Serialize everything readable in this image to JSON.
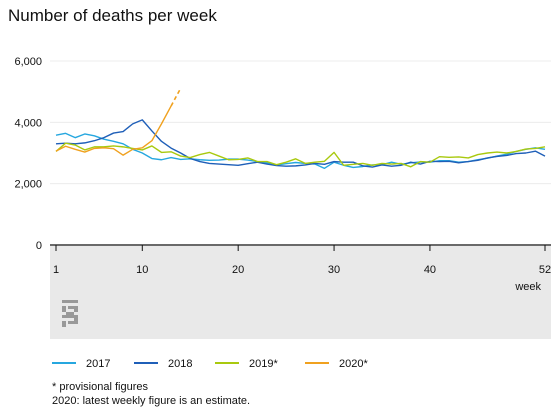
{
  "title": "Number of deaths per week",
  "colors": {
    "2017": "#26a7df",
    "2018": "#1f5fb8",
    "2019*": "#a9c90e",
    "2020*": "#f0a11f",
    "plot_bg": "#e9e9e9",
    "grid": "#ffffff",
    "axis": "#111111"
  },
  "icon": "cbs-logo-icon",
  "chart_data": {
    "type": "line",
    "title": "Number of deaths per week",
    "xlabel": "week",
    "ylabel": "",
    "xlim": [
      1,
      52
    ],
    "ylim": [
      0,
      6000
    ],
    "x_ticks": [
      1,
      10,
      20,
      30,
      40,
      52
    ],
    "y_ticks": [
      0,
      2000,
      4000,
      6000
    ],
    "y_tick_labels": [
      "0",
      "2,000",
      "4,000",
      "6,000"
    ],
    "grid": true,
    "legend": "bottom",
    "series": [
      {
        "name": "2017",
        "x": [
          1,
          2,
          3,
          4,
          5,
          6,
          7,
          8,
          9,
          10,
          11,
          12,
          13,
          14,
          15,
          16,
          17,
          18,
          19,
          20,
          21,
          22,
          23,
          24,
          25,
          26,
          27,
          28,
          29,
          30,
          31,
          32,
          33,
          34,
          35,
          36,
          37,
          38,
          39,
          40,
          41,
          42,
          43,
          44,
          45,
          46,
          47,
          48,
          49,
          50,
          51,
          52
        ],
        "values": [
          3580,
          3640,
          3500,
          3620,
          3560,
          3450,
          3380,
          3300,
          3120,
          3000,
          2820,
          2780,
          2850,
          2790,
          2810,
          2780,
          2760,
          2770,
          2800,
          2800,
          2770,
          2720,
          2680,
          2610,
          2650,
          2690,
          2660,
          2640,
          2500,
          2700,
          2600,
          2530,
          2560,
          2610,
          2620,
          2700,
          2630,
          2680,
          2710,
          2700,
          2750,
          2750,
          2700,
          2720,
          2780,
          2830,
          2900,
          2960,
          3050,
          3120,
          3170,
          3120
        ]
      },
      {
        "name": "2018",
        "x": [
          1,
          2,
          3,
          4,
          5,
          6,
          7,
          8,
          9,
          10,
          11,
          12,
          13,
          14,
          15,
          16,
          17,
          18,
          19,
          20,
          21,
          22,
          23,
          24,
          25,
          26,
          27,
          28,
          29,
          30,
          31,
          32,
          33,
          34,
          35,
          36,
          37,
          38,
          39,
          40,
          41,
          42,
          43,
          44,
          45,
          46,
          47,
          48,
          49,
          50,
          51,
          52
        ],
        "values": [
          3300,
          3320,
          3300,
          3330,
          3400,
          3500,
          3650,
          3700,
          3950,
          4080,
          3720,
          3380,
          3160,
          3000,
          2820,
          2720,
          2660,
          2640,
          2620,
          2600,
          2650,
          2700,
          2640,
          2590,
          2570,
          2580,
          2610,
          2660,
          2630,
          2720,
          2700,
          2700,
          2580,
          2540,
          2610,
          2570,
          2600,
          2700,
          2640,
          2730,
          2720,
          2730,
          2680,
          2720,
          2760,
          2840,
          2890,
          2920,
          2980,
          3000,
          3060,
          2900
        ]
      },
      {
        "name": "2019*",
        "x": [
          1,
          2,
          3,
          4,
          5,
          6,
          7,
          8,
          9,
          10,
          11,
          12,
          13,
          14,
          15,
          16,
          17,
          18,
          19,
          20,
          21,
          22,
          23,
          24,
          25,
          26,
          27,
          28,
          29,
          30,
          31,
          32,
          33,
          34,
          35,
          36,
          37,
          38,
          39,
          40,
          41,
          42,
          43,
          44,
          45,
          46,
          47,
          48,
          49,
          50,
          51,
          52
        ],
        "values": [
          3050,
          3320,
          3260,
          3100,
          3200,
          3200,
          3230,
          3200,
          3150,
          3100,
          3230,
          3020,
          3040,
          2900,
          2850,
          2950,
          3020,
          2900,
          2780,
          2790,
          2840,
          2720,
          2720,
          2620,
          2700,
          2810,
          2660,
          2700,
          2730,
          3020,
          2600,
          2630,
          2660,
          2600,
          2660,
          2640,
          2660,
          2550,
          2720,
          2700,
          2880,
          2860,
          2870,
          2840,
          2950,
          3000,
          3030,
          3000,
          3050,
          3130,
          3150,
          3200
        ]
      },
      {
        "name": "2020*",
        "x": [
          1,
          2,
          3,
          4,
          5,
          6,
          7,
          8,
          9,
          10,
          11,
          12,
          13
        ],
        "values": [
          3060,
          3220,
          3120,
          3030,
          3150,
          3170,
          3140,
          2930,
          3120,
          3170,
          3400,
          3950,
          4530
        ],
        "estimate": {
          "x": [
            13,
            14
          ],
          "values": [
            4530,
            5110
          ]
        }
      }
    ],
    "notes": [
      "* provisional figures",
      "2020: latest weekly figure is an estimate."
    ]
  }
}
